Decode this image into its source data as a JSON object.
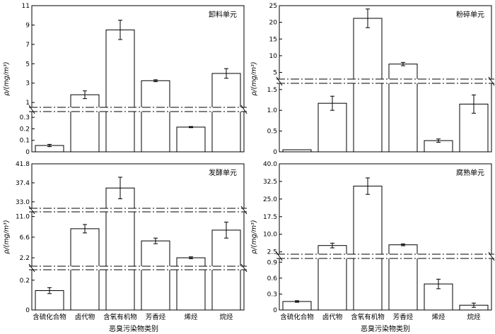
{
  "figure": {
    "xlabel": "恶臭污染物类别",
    "categories": [
      "含硫化合物",
      "卤代物",
      "含氧有机物",
      "芳香烃",
      "烯烃",
      "烷烃"
    ]
  },
  "chart_data": [
    {
      "type": "bar",
      "title": "卸料单元",
      "ylabel": "ρ/(mg/m³)",
      "categories": [
        "含硫化合物",
        "卤代物",
        "含氧有机物",
        "芳香烃",
        "烯烃",
        "烷烃"
      ],
      "values": [
        0.055,
        1.8,
        8.5,
        3.25,
        0.215,
        4.0
      ],
      "errors": [
        0.01,
        0.4,
        1.0,
        0.1,
        0.005,
        0.5
      ],
      "axis_breaks": true,
      "segments": [
        {
          "range": [
            0,
            0.35
          ],
          "ticks": [
            "0",
            "0.1",
            "0.2",
            "0.3"
          ]
        },
        {
          "range": [
            0.5,
            11
          ],
          "ticks": [
            "1",
            "3",
            "5",
            "7",
            "9",
            "11"
          ]
        }
      ]
    },
    {
      "type": "bar",
      "title": "粉碎单元",
      "ylabel": "ρ/(mg/m³)",
      "categories": [
        "含硫化合物",
        "卤代物",
        "含氧有机物",
        "芳香烃",
        "烯烃",
        "烷烃"
      ],
      "values": [
        0.05,
        1.17,
        21.2,
        7.5,
        0.27,
        1.15
      ],
      "errors": [
        0.0,
        0.17,
        2.8,
        0.5,
        0.04,
        0.22
      ],
      "axis_breaks": true,
      "segments": [
        {
          "range": [
            0,
            1.65
          ],
          "ticks": [
            "0",
            "0.5",
            "1.0",
            "1.5"
          ]
        },
        {
          "range": [
            3,
            25
          ],
          "ticks": [
            "5",
            "10",
            "15",
            "20",
            "25"
          ]
        }
      ]
    },
    {
      "type": "bar",
      "title": "发酵单元",
      "ylabel": "ρ/(mg/m³)",
      "categories": [
        "含硫化合物",
        "卤代物",
        "含氧有机物",
        "芳香烃",
        "烯烃",
        "烷烃"
      ],
      "values": [
        0.13,
        8.4,
        36.2,
        5.8,
        2.2,
        8.1
      ],
      "errors": [
        0.02,
        0.9,
        2.5,
        0.6,
        0.2,
        1.7
      ],
      "axis_breaks": true,
      "segments": [
        {
          "range": [
            0,
            0.27
          ],
          "ticks": [
            "0",
            "0.2"
          ]
        },
        {
          "range": [
            0.4,
            12
          ],
          "ticks": [
            "2.2",
            "6.6",
            "11.0"
          ]
        },
        {
          "range": [
            31.5,
            41.8
          ],
          "ticks": [
            "33.0",
            "37.4",
            "41.8"
          ]
        }
      ]
    },
    {
      "type": "bar",
      "title": "腐熟单元",
      "ylabel": "ρ/(mg/m³)",
      "categories": [
        "含硫化合物",
        "卤代物",
        "含氧有机物",
        "芳香烃",
        "烯烃",
        "烷烃"
      ],
      "values": [
        0.16,
        5.2,
        30.5,
        5.5,
        0.49,
        0.09
      ],
      "errors": [
        0.015,
        1.0,
        3.5,
        0.4,
        0.09,
        0.04
      ],
      "axis_breaks": true,
      "segments": [
        {
          "range": [
            0,
            0.97
          ],
          "ticks": [
            "0",
            "0.3",
            "0.6",
            "0.9"
          ]
        },
        {
          "range": [
            1.5,
            40
          ],
          "ticks": [
            "2.5",
            "10.0",
            "17.5",
            "25.0",
            "32.5",
            "40.0"
          ]
        }
      ]
    }
  ]
}
